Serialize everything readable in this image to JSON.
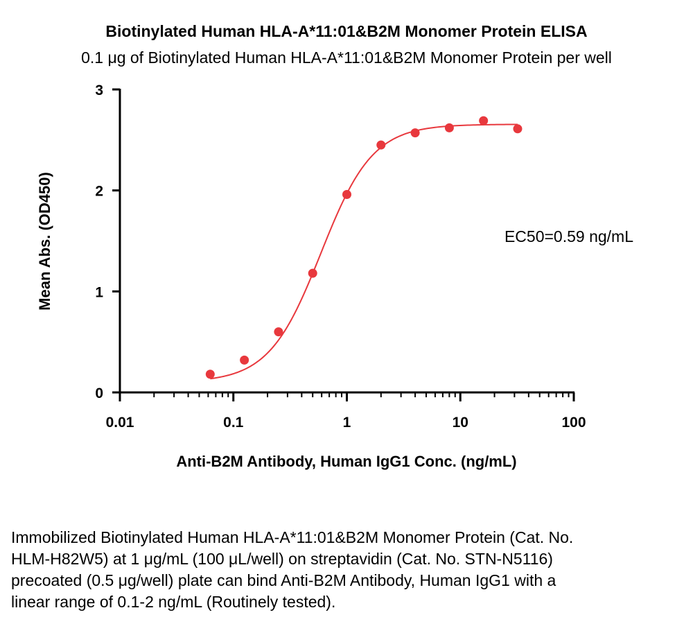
{
  "chart_data": {
    "type": "scatter",
    "title": "Biotinylated Human HLA-A*11:01&B2M Monomer Protein ELISA",
    "subtitle": "0.1 μg of Biotinylated Human HLA-A*11:01&B2M Monomer Protein per well",
    "xlabel": "Anti-B2M Antibody, Human IgG1  Conc. (ng/mL)",
    "ylabel": "Mean Abs. (OD450)",
    "x_scale": "log",
    "xlim": [
      0.01,
      100
    ],
    "ylim": [
      0,
      3
    ],
    "x_ticks": [
      "0.01",
      "0.1",
      "1",
      "10",
      "100"
    ],
    "y_ticks": [
      "0",
      "1",
      "2",
      "3"
    ],
    "grid": false,
    "series": [
      {
        "x": [
          0.0625,
          0.125,
          0.25,
          0.5,
          1,
          2,
          4,
          8,
          16,
          32
        ],
        "y": [
          0.18,
          0.32,
          0.6,
          1.18,
          1.96,
          2.45,
          2.57,
          2.62,
          2.69,
          2.61
        ],
        "color": "#e8383d",
        "fit": "4PL sigmoid"
      }
    ],
    "annotations": [
      "EC50=0.59 ng/mL"
    ]
  },
  "caption": "Immobilized Biotinylated Human HLA-A*11:01&B2M Monomer Protein (Cat. No. HLM-H82W5) at 1 μg/mL (100 μL/well) on streptavidin (Cat. No. STN-N5116) precoated (0.5 μg/well) plate can bind Anti-B2M Antibody, Human IgG1 with a linear range of 0.1-2 ng/mL (Routinely tested)."
}
